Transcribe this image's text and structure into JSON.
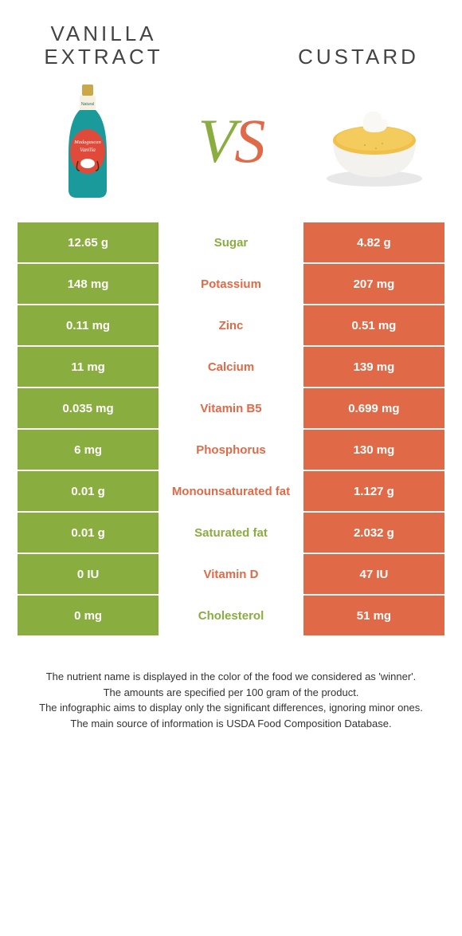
{
  "colors": {
    "left_bg": "#8aad3f",
    "right_bg": "#e06a47",
    "left_text_on_bg": "#ffffff",
    "right_text_on_bg": "#ffffff",
    "mid_left": "#e06a47",
    "mid_right": "#8aad3f"
  },
  "header": {
    "left_title": "VANILLA EXTRACT",
    "right_title": "CUSTARD",
    "vs_v": "V",
    "vs_s": "S"
  },
  "rows": [
    {
      "left": "12.65 g",
      "label": "Sugar",
      "right": "4.82 g",
      "winner": "left"
    },
    {
      "left": "148 mg",
      "label": "Potassium",
      "right": "207 mg",
      "winner": "right"
    },
    {
      "left": "0.11 mg",
      "label": "Zinc",
      "right": "0.51 mg",
      "winner": "right"
    },
    {
      "left": "11 mg",
      "label": "Calcium",
      "right": "139 mg",
      "winner": "right"
    },
    {
      "left": "0.035 mg",
      "label": "Vitamin B5",
      "right": "0.699 mg",
      "winner": "right"
    },
    {
      "left": "6 mg",
      "label": "Phosphorus",
      "right": "130 mg",
      "winner": "right"
    },
    {
      "left": "0.01 g",
      "label": "Monounsaturated fat",
      "right": "1.127 g",
      "winner": "right"
    },
    {
      "left": "0.01 g",
      "label": "Saturated fat",
      "right": "2.032 g",
      "winner": "left"
    },
    {
      "left": "0 IU",
      "label": "Vitamin D",
      "right": "47 IU",
      "winner": "right"
    },
    {
      "left": "0 mg",
      "label": "Cholesterol",
      "right": "51 mg",
      "winner": "left"
    }
  ],
  "footnotes": [
    "The nutrient name is displayed in the color of the food we considered as 'winner'.",
    "The amounts are specified per 100 gram of the product.",
    "The infographic aims to display only the significant differences, ignoring minor ones.",
    "The main source of information is USDA Food Composition Database."
  ]
}
